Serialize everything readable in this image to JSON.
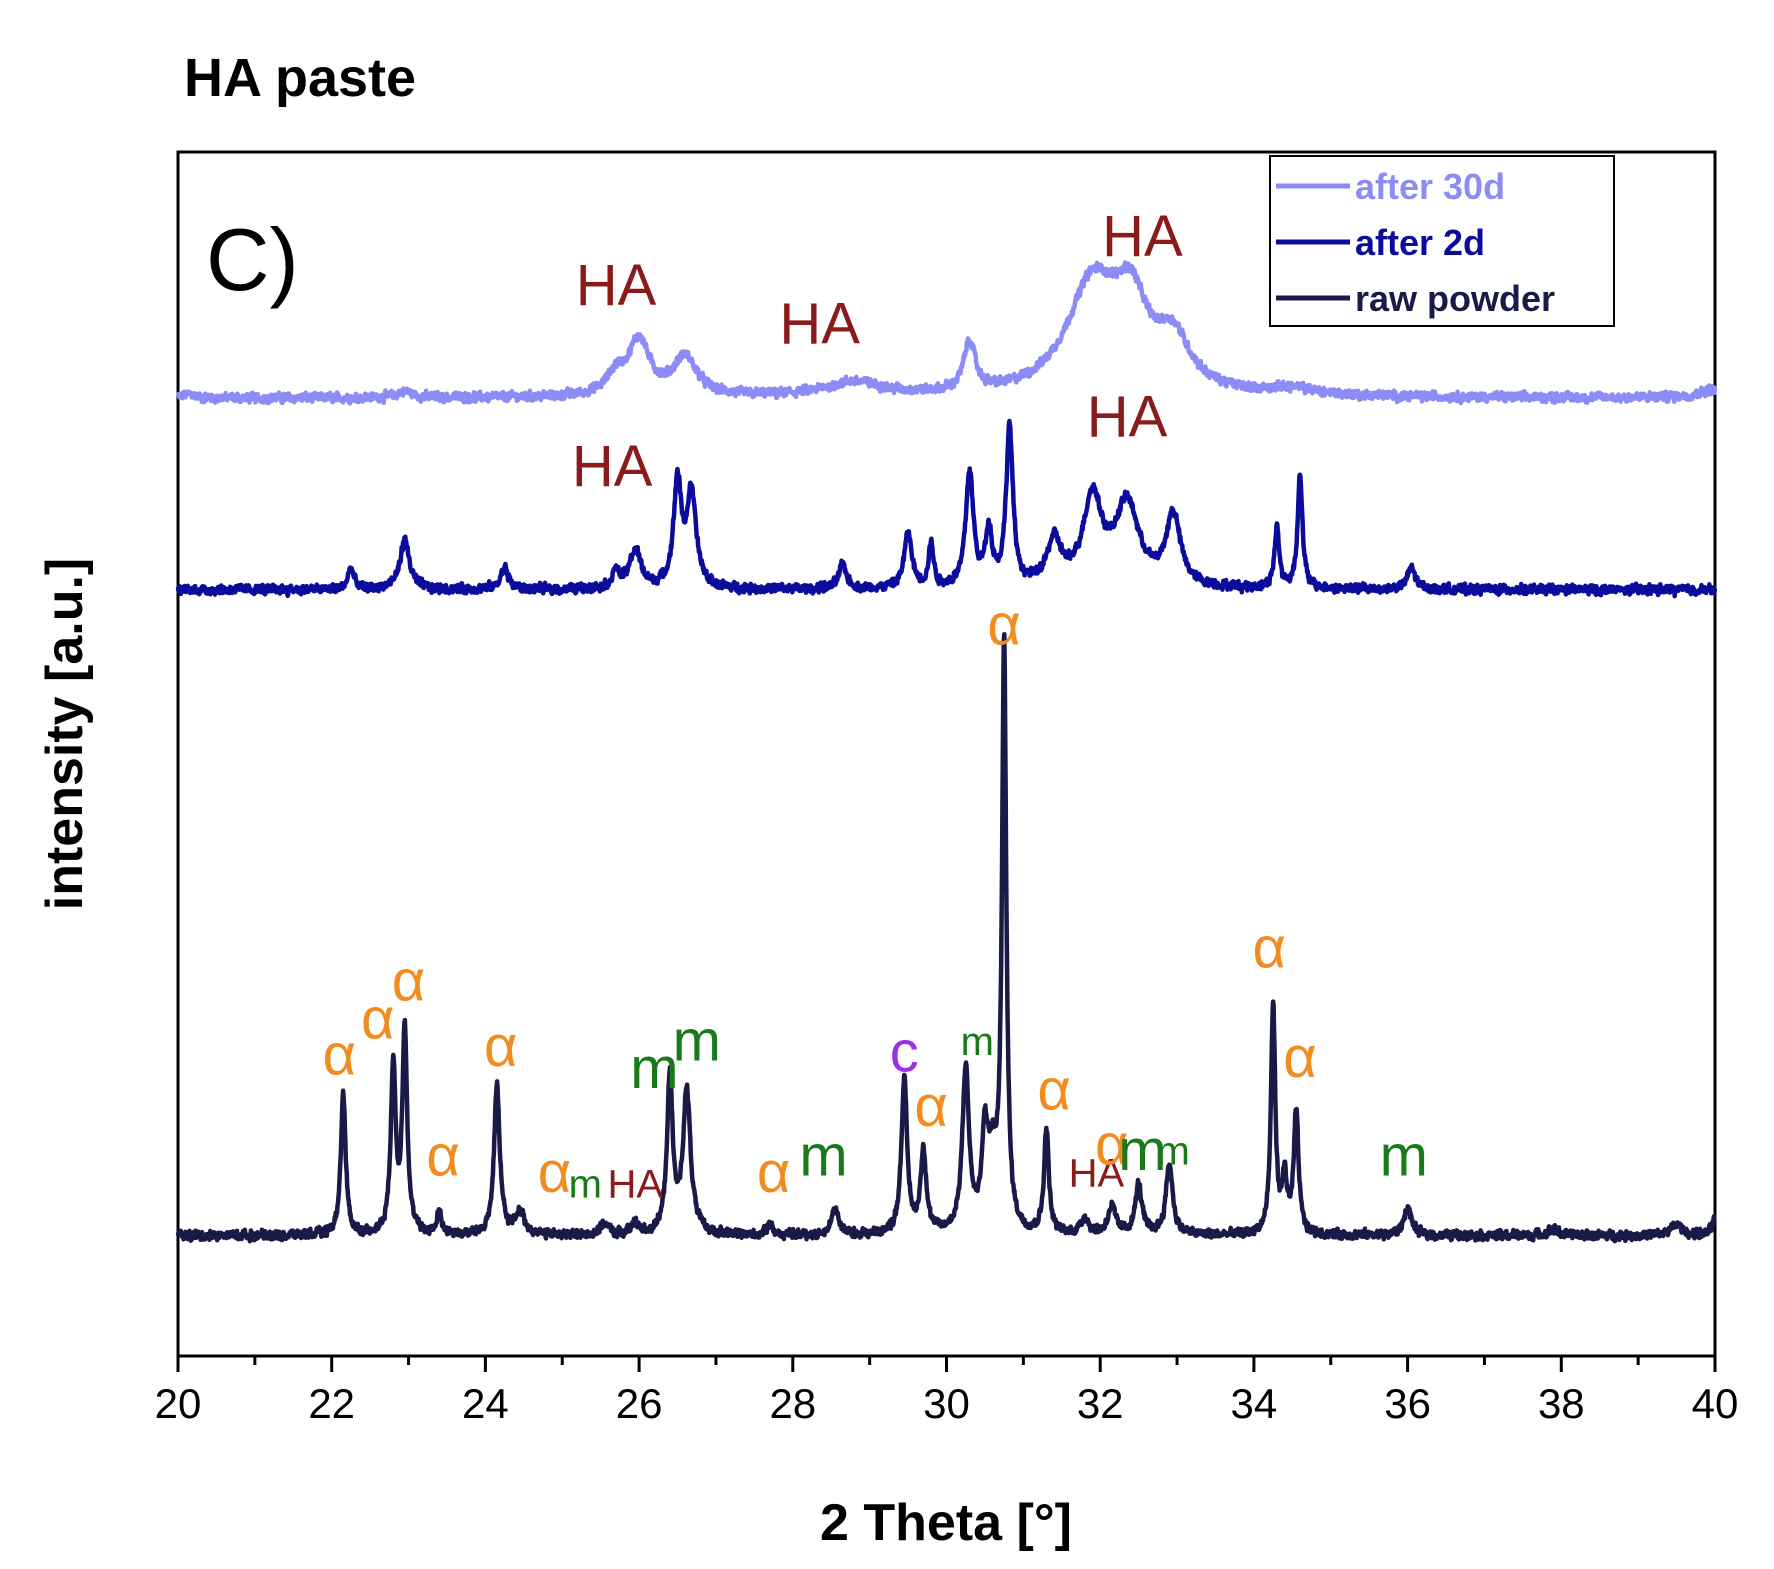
{
  "chart_data": {
    "type": "line",
    "title": "HA paste",
    "panel_label": "C)",
    "xlabel": "2 Theta [°]",
    "ylabel": "intensity [a.u.]",
    "xlim": [
      20,
      40
    ],
    "ylim": [
      -0.5,
      10.5
    ],
    "xticks": [
      20,
      22,
      24,
      26,
      28,
      30,
      32,
      34,
      36,
      38,
      40
    ],
    "yticks_shown": false,
    "legend_position": "top-right",
    "series": [
      {
        "name": "after 30d",
        "color": "#8c8cf5",
        "baseline": 8.25,
        "noise": 0.05,
        "peaks": [
          {
            "x": 20.15,
            "h": 0.04,
            "w": 0.1
          },
          {
            "x": 22.95,
            "h": 0.06,
            "w": 0.15
          },
          {
            "x": 26.0,
            "h": 0.5,
            "w": 0.22
          },
          {
            "x": 25.7,
            "h": 0.18,
            "w": 0.2
          },
          {
            "x": 26.6,
            "h": 0.35,
            "w": 0.25
          },
          {
            "x": 28.8,
            "h": 0.13,
            "w": 0.6
          },
          {
            "x": 30.3,
            "h": 0.45,
            "w": 0.12
          },
          {
            "x": 31.9,
            "h": 1.0,
            "w": 0.55
          },
          {
            "x": 32.4,
            "h": 0.7,
            "w": 0.35
          },
          {
            "x": 32.95,
            "h": 0.45,
            "w": 0.35
          },
          {
            "x": 34.5,
            "h": 0.06,
            "w": 0.5
          },
          {
            "x": 40.0,
            "h": 0.08,
            "w": 0.3
          }
        ]
      },
      {
        "name": "after 2d",
        "color": "#0c0c9c",
        "baseline": 6.5,
        "noise": 0.05,
        "peaks": [
          {
            "x": 22.25,
            "h": 0.2,
            "w": 0.06
          },
          {
            "x": 22.95,
            "h": 0.45,
            "w": 0.1
          },
          {
            "x": 24.25,
            "h": 0.2,
            "w": 0.08
          },
          {
            "x": 25.7,
            "h": 0.15,
            "w": 0.08
          },
          {
            "x": 25.95,
            "h": 0.35,
            "w": 0.12
          },
          {
            "x": 26.5,
            "h": 0.95,
            "w": 0.08
          },
          {
            "x": 26.68,
            "h": 0.85,
            "w": 0.1
          },
          {
            "x": 28.65,
            "h": 0.22,
            "w": 0.08
          },
          {
            "x": 29.5,
            "h": 0.5,
            "w": 0.08
          },
          {
            "x": 29.8,
            "h": 0.4,
            "w": 0.05
          },
          {
            "x": 30.3,
            "h": 1.05,
            "w": 0.08
          },
          {
            "x": 30.55,
            "h": 0.5,
            "w": 0.07
          },
          {
            "x": 30.82,
            "h": 1.45,
            "w": 0.07
          },
          {
            "x": 31.4,
            "h": 0.4,
            "w": 0.15
          },
          {
            "x": 31.9,
            "h": 0.8,
            "w": 0.2
          },
          {
            "x": 32.35,
            "h": 0.75,
            "w": 0.25
          },
          {
            "x": 32.95,
            "h": 0.65,
            "w": 0.15
          },
          {
            "x": 34.3,
            "h": 0.55,
            "w": 0.05
          },
          {
            "x": 34.6,
            "h": 1.05,
            "w": 0.05
          },
          {
            "x": 36.05,
            "h": 0.2,
            "w": 0.08
          }
        ]
      },
      {
        "name": "raw powder",
        "color": "#1a1a48",
        "baseline": 0.6,
        "noise": 0.05,
        "peaks": [
          {
            "x": 22.15,
            "h": 1.3,
            "w": 0.05
          },
          {
            "x": 22.8,
            "h": 1.55,
            "w": 0.05
          },
          {
            "x": 22.95,
            "h": 1.9,
            "w": 0.05
          },
          {
            "x": 23.4,
            "h": 0.2,
            "w": 0.05
          },
          {
            "x": 24.15,
            "h": 1.35,
            "w": 0.06
          },
          {
            "x": 24.45,
            "h": 0.2,
            "w": 0.1
          },
          {
            "x": 25.55,
            "h": 0.1,
            "w": 0.08
          },
          {
            "x": 25.95,
            "h": 0.1,
            "w": 0.08
          },
          {
            "x": 26.4,
            "h": 1.4,
            "w": 0.06
          },
          {
            "x": 26.62,
            "h": 1.3,
            "w": 0.08
          },
          {
            "x": 27.7,
            "h": 0.12,
            "w": 0.05
          },
          {
            "x": 28.55,
            "h": 0.25,
            "w": 0.07
          },
          {
            "x": 29.45,
            "h": 1.4,
            "w": 0.06
          },
          {
            "x": 29.7,
            "h": 0.75,
            "w": 0.06
          },
          {
            "x": 30.25,
            "h": 1.5,
            "w": 0.07
          },
          {
            "x": 30.5,
            "h": 0.8,
            "w": 0.06
          },
          {
            "x": 30.75,
            "h": 5.3,
            "w": 0.045
          },
          {
            "x": 30.6,
            "h": 0.6,
            "w": 0.1
          },
          {
            "x": 31.3,
            "h": 0.95,
            "w": 0.05
          },
          {
            "x": 31.8,
            "h": 0.15,
            "w": 0.08
          },
          {
            "x": 32.15,
            "h": 0.25,
            "w": 0.08
          },
          {
            "x": 32.5,
            "h": 0.45,
            "w": 0.07
          },
          {
            "x": 32.9,
            "h": 0.65,
            "w": 0.07
          },
          {
            "x": 34.25,
            "h": 2.1,
            "w": 0.045
          },
          {
            "x": 34.4,
            "h": 0.5,
            "w": 0.05
          },
          {
            "x": 34.55,
            "h": 1.1,
            "w": 0.05
          },
          {
            "x": 36.0,
            "h": 0.25,
            "w": 0.08
          },
          {
            "x": 37.9,
            "h": 0.06,
            "w": 0.1
          },
          {
            "x": 39.5,
            "h": 0.1,
            "w": 0.12
          },
          {
            "x": 40.0,
            "h": 0.15,
            "w": 0.06
          }
        ]
      }
    ],
    "annotations": [
      {
        "text": "HA",
        "x": 25.7,
        "y": 9.1,
        "color": "#8b1a1a",
        "size": "large"
      },
      {
        "text": "HA",
        "x": 28.35,
        "y": 8.75,
        "color": "#8b1a1a",
        "size": "large"
      },
      {
        "text": "HA",
        "x": 32.55,
        "y": 9.55,
        "color": "#8b1a1a",
        "size": "large"
      },
      {
        "text": "HA",
        "x": 25.65,
        "y": 7.45,
        "color": "#8b1a1a",
        "size": "large"
      },
      {
        "text": "HA",
        "x": 32.35,
        "y": 7.9,
        "color": "#8b1a1a",
        "size": "large"
      },
      {
        "text": "α",
        "x": 30.75,
        "y": 6.0,
        "color": "#f28c1e",
        "size": "large"
      },
      {
        "text": "α",
        "x": 22.1,
        "y": 2.07,
        "color": "#f28c1e",
        "size": "large"
      },
      {
        "text": "α",
        "x": 22.6,
        "y": 2.4,
        "color": "#f28c1e",
        "size": "large"
      },
      {
        "text": "α",
        "x": 23.0,
        "y": 2.75,
        "color": "#f28c1e",
        "size": "large"
      },
      {
        "text": "α",
        "x": 23.45,
        "y": 1.15,
        "color": "#f28c1e",
        "size": "large"
      },
      {
        "text": "α",
        "x": 24.2,
        "y": 2.15,
        "color": "#f28c1e",
        "size": "large"
      },
      {
        "text": "α",
        "x": 24.9,
        "y": 1.0,
        "color": "#f28c1e",
        "size": "large"
      },
      {
        "text": "m",
        "x": 25.3,
        "y": 0.95,
        "color": "#1a7a1a",
        "size": "medium"
      },
      {
        "text": "HA",
        "x": 25.95,
        "y": 0.95,
        "color": "#8b1a1a",
        "size": "medium"
      },
      {
        "text": "m",
        "x": 26.2,
        "y": 1.95,
        "color": "#1a7a1a",
        "size": "large"
      },
      {
        "text": "m",
        "x": 26.75,
        "y": 2.2,
        "color": "#1a7a1a",
        "size": "large"
      },
      {
        "text": "α",
        "x": 27.75,
        "y": 1.0,
        "color": "#f28c1e",
        "size": "large"
      },
      {
        "text": "m",
        "x": 28.4,
        "y": 1.15,
        "color": "#1a7a1a",
        "size": "large"
      },
      {
        "text": "c",
        "x": 29.45,
        "y": 2.1,
        "color": "#9b30e8",
        "size": "large"
      },
      {
        "text": "α",
        "x": 29.8,
        "y": 1.6,
        "color": "#f28c1e",
        "size": "large"
      },
      {
        "text": "m",
        "x": 30.4,
        "y": 2.25,
        "color": "#1a7a1a",
        "size": "medium"
      },
      {
        "text": "α",
        "x": 31.4,
        "y": 1.75,
        "color": "#f28c1e",
        "size": "large"
      },
      {
        "text": "HA",
        "x": 31.95,
        "y": 1.05,
        "color": "#8b1a1a",
        "size": "medium"
      },
      {
        "text": "α",
        "x": 32.15,
        "y": 1.25,
        "color": "#f28c1e",
        "size": "large"
      },
      {
        "text": "m",
        "x": 32.55,
        "y": 1.2,
        "color": "#1a7a1a",
        "size": "large"
      },
      {
        "text": "m",
        "x": 32.95,
        "y": 1.25,
        "color": "#1a7a1a",
        "size": "medium"
      },
      {
        "text": "α",
        "x": 34.2,
        "y": 3.05,
        "color": "#f28c1e",
        "size": "large"
      },
      {
        "text": "α",
        "x": 34.6,
        "y": 2.05,
        "color": "#f28c1e",
        "size": "large"
      },
      {
        "text": "m",
        "x": 35.95,
        "y": 1.15,
        "color": "#1a7a1a",
        "size": "large"
      }
    ]
  }
}
